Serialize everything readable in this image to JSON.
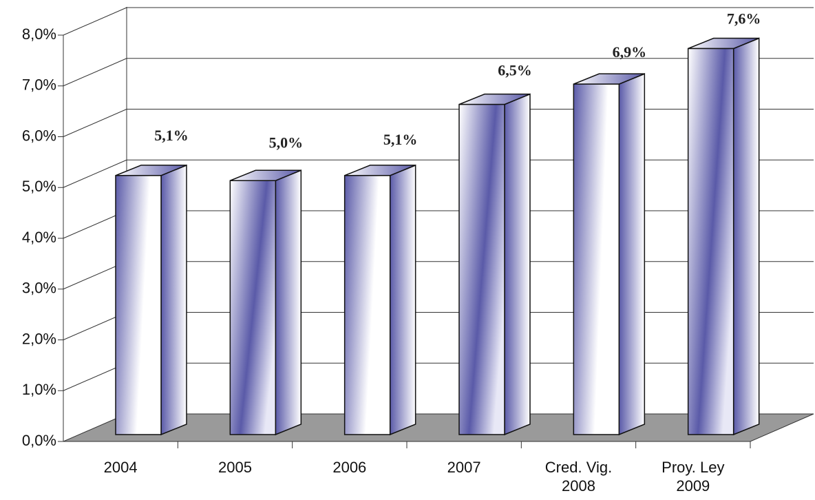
{
  "chart_data": {
    "type": "bar3d",
    "categories": [
      "2004",
      "2005",
      "2006",
      "2007",
      "Cred. Vig. 2008",
      "Proy. Ley 2009"
    ],
    "values": [
      5.1,
      5.0,
      5.1,
      6.5,
      6.9,
      7.6
    ],
    "value_labels": [
      "5,1%",
      "5,0%",
      "5,1%",
      "6,5%",
      "6,9%",
      "7,6%"
    ],
    "color": "#5a5aa8",
    "ylim": [
      0,
      8
    ],
    "yticks": [
      {
        "value": 0,
        "label": "0,0%"
      },
      {
        "value": 1,
        "label": "1,0%"
      },
      {
        "value": 2,
        "label": "2,0%"
      },
      {
        "value": 3,
        "label": "3,0%"
      },
      {
        "value": 4,
        "label": "4,0%"
      },
      {
        "value": 5,
        "label": "5,0%"
      },
      {
        "value": 6,
        "label": "6,0%"
      },
      {
        "value": 7,
        "label": "7,0%"
      },
      {
        "value": 8,
        "label": "8,0%"
      }
    ],
    "grid": true
  }
}
